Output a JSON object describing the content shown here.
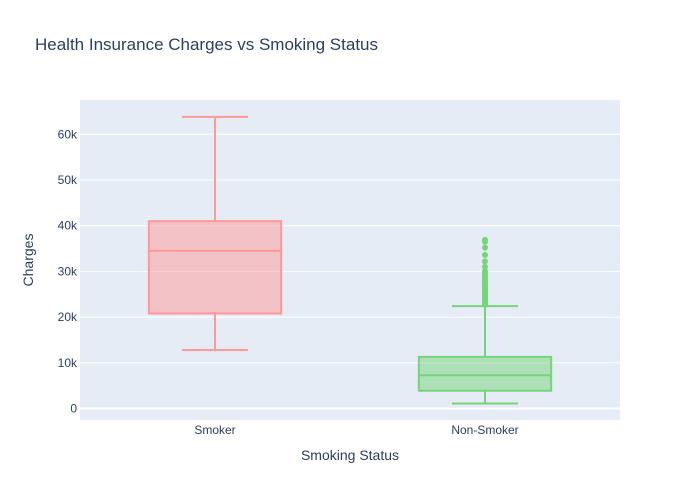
{
  "chart_data": {
    "type": "box",
    "title": "Health Insurance Charges vs Smoking Status",
    "xlabel": "Smoking Status",
    "ylabel": "Charges",
    "ylim": [
      -2500,
      67500
    ],
    "yticks": [
      0,
      10000,
      20000,
      30000,
      40000,
      50000,
      60000
    ],
    "ytick_labels": [
      "0",
      "10k",
      "20k",
      "30k",
      "40k",
      "50k",
      "60k"
    ],
    "grid": true,
    "legend": "none",
    "series": [
      {
        "category": "Smoker",
        "color": "#FF9896",
        "fill": "rgba(255,152,150,0.5)",
        "min": 12800,
        "q1": 20800,
        "median": 34500,
        "q3": 41000,
        "max": 63800,
        "outliers": []
      },
      {
        "category": "Non-Smoker",
        "color": "#77D47A",
        "fill": "rgba(119,212,122,0.5)",
        "min": 1100,
        "q1": 3900,
        "median": 7300,
        "q3": 11300,
        "max": 22400,
        "outliers": [
          22700,
          23000,
          23300,
          23600,
          24000,
          24400,
          24800,
          25200,
          25600,
          26000,
          26500,
          27000,
          27500,
          28000,
          28500,
          29000,
          29500,
          30000,
          31000,
          32200,
          33600,
          35200,
          36500,
          36900
        ]
      }
    ]
  }
}
